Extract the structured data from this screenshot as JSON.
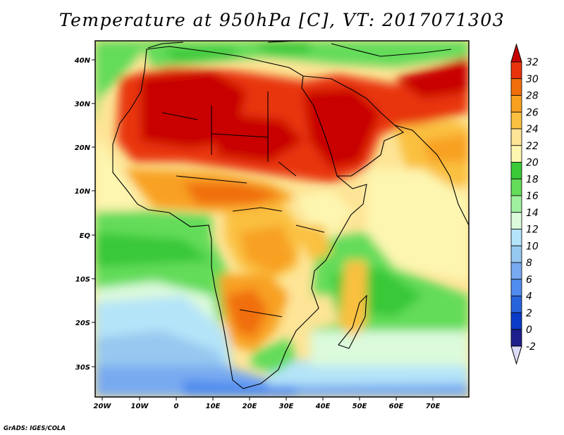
{
  "title": "Temperature at 950hPa [C], VT: 2017071303",
  "footer": "GrADS: IGES/COLA",
  "axes": {
    "lat_ticks": [
      "40N",
      "30N",
      "20N",
      "10N",
      "EQ",
      "10S",
      "20S",
      "30S"
    ],
    "lon_ticks": [
      "20W",
      "10W",
      "0",
      "10E",
      "20E",
      "30E",
      "40E",
      "50E",
      "60E",
      "70E"
    ]
  },
  "colorbar": {
    "labels": [
      "32",
      "30",
      "28",
      "26",
      "24",
      "22",
      "20",
      "18",
      "16",
      "14",
      "12",
      "10",
      "8",
      "6",
      "4",
      "2",
      "0",
      "-2"
    ],
    "colors": [
      "#c80000",
      "#e8340c",
      "#f06e0c",
      "#f8a020",
      "#fac040",
      "#fde496",
      "#fdf6b0",
      "#38c838",
      "#64dc5a",
      "#a0f0a0",
      "#dcfadc",
      "#b4e4f8",
      "#96c8f0",
      "#78aaf0",
      "#508cf0",
      "#2864dc",
      "#0a3cc8",
      "#1e1e8c",
      "#dcdcf8"
    ]
  },
  "legend": {
    "regions": []
  }
}
